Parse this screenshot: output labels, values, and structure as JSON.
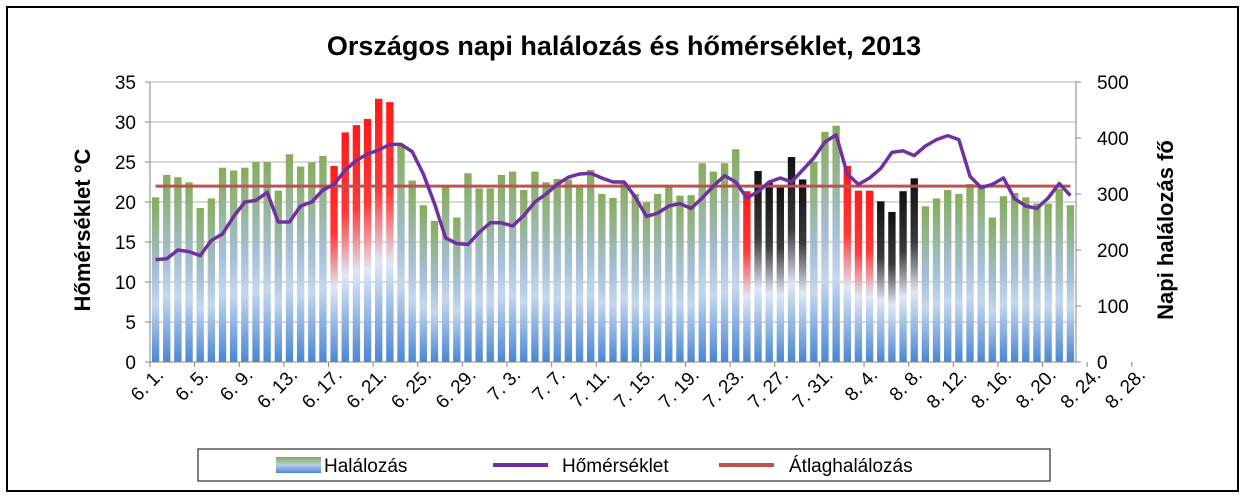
{
  "chart_data": {
    "type": "bar",
    "title": "Országos napi halálozás és hőmérséklet, 2013",
    "ylabel_left": "Hőmérséklet °C",
    "ylabel_right": "Napi halálozás fő",
    "ylim_left": [
      0,
      35
    ],
    "ylim_right": [
      0,
      500
    ],
    "yticks_left": [
      0,
      5,
      10,
      15,
      20,
      25,
      30,
      35
    ],
    "yticks_right": [
      0,
      100,
      200,
      300,
      400,
      500
    ],
    "xtick_labels": [
      "6. 1.",
      "6. 5.",
      "6. 9.",
      "6. 13.",
      "6. 17.",
      "6. 21.",
      "6. 25.",
      "6. 29.",
      "7. 3.",
      "7. 7.",
      "7. 11.",
      "7. 15.",
      "7. 19.",
      "7. 23.",
      "7. 27.",
      "7. 31.",
      "8. 4.",
      "8. 8.",
      "8. 12.",
      "8. 16.",
      "8. 20.",
      "8. 24.",
      "8. 28."
    ],
    "legend": {
      "position": "bottom"
    },
    "colors": {
      "deaths_normal": "#86ac5a",
      "deaths_heatwave": "#ff1a1a",
      "deaths_dark": "#111111",
      "deaths_base": "#4a86d2",
      "temperature": "#7030a0",
      "average": "#c0504d"
    },
    "series": [
      {
        "name": "Halálozás",
        "kind": "bar",
        "axis": "right",
        "values": [
          294,
          334,
          330,
          321,
          275,
          292,
          347,
          342,
          347,
          357,
          357,
          306,
          371,
          349,
          356,
          368,
          350,
          410,
          423,
          434,
          470,
          464,
          387,
          324,
          280,
          252,
          313,
          258,
          337,
          310,
          310,
          334,
          340,
          307,
          340,
          321,
          327,
          326,
          317,
          343,
          300,
          293,
          320,
          300,
          285,
          300,
          312,
          297,
          298,
          355,
          340,
          355,
          380,
          305,
          341,
          320,
          315,
          366,
          326,
          358,
          411,
          422,
          350,
          306,
          306,
          287,
          268,
          305,
          328,
          278,
          292,
          307,
          300,
          318,
          316,
          258,
          296,
          302,
          294,
          283,
          283,
          309,
          280
        ],
        "styles": [
          "n",
          "n",
          "n",
          "n",
          "n",
          "n",
          "n",
          "n",
          "n",
          "n",
          "n",
          "n",
          "n",
          "n",
          "n",
          "n",
          "h",
          "h",
          "h",
          "h",
          "h",
          "h",
          "n",
          "n",
          "n",
          "n",
          "n",
          "n",
          "n",
          "n",
          "n",
          "n",
          "n",
          "n",
          "n",
          "n",
          "n",
          "n",
          "n",
          "n",
          "n",
          "n",
          "n",
          "n",
          "n",
          "n",
          "n",
          "n",
          "n",
          "n",
          "n",
          "n",
          "n",
          "h",
          "d",
          "d",
          "d",
          "d",
          "d",
          "n",
          "n",
          "n",
          "h",
          "h",
          "h",
          "d",
          "d",
          "d",
          "d",
          "n",
          "n",
          "n",
          "n",
          "n",
          "n",
          "n",
          "n",
          "n",
          "n",
          "n",
          "n",
          "n",
          "n"
        ]
      },
      {
        "name": "Hőmérséklet",
        "kind": "line",
        "axis": "left",
        "values": [
          12.8,
          12.9,
          14.0,
          13.8,
          13.3,
          15.2,
          16.0,
          18.2,
          20.0,
          20.2,
          21.2,
          17.5,
          17.5,
          19.5,
          20.0,
          21.5,
          22.2,
          24.0,
          25.2,
          26.0,
          26.5,
          27.2,
          27.2,
          26.3,
          23.5,
          19.8,
          15.5,
          14.8,
          14.7,
          16.2,
          17.4,
          17.4,
          17.0,
          18.3,
          20.0,
          21.0,
          22.2,
          23.1,
          23.5,
          23.6,
          23.0,
          22.5,
          22.5,
          20.6,
          18.2,
          18.6,
          19.5,
          19.8,
          19.2,
          20.5,
          22.0,
          23.3,
          22.5,
          20.5,
          21.3,
          22.5,
          23.0,
          22.5,
          24.0,
          25.5,
          27.5,
          28.4,
          23.5,
          22.2,
          23.0,
          24.2,
          26.2,
          26.4,
          25.8,
          27.0,
          27.8,
          28.3,
          27.8,
          23.2,
          21.8,
          22.2,
          23.0,
          20.4,
          19.5,
          19.2,
          20.5,
          22.3,
          20.8
        ]
      },
      {
        "name": "Átlaghalálozás",
        "kind": "line",
        "axis": "right",
        "value": 314
      }
    ]
  }
}
